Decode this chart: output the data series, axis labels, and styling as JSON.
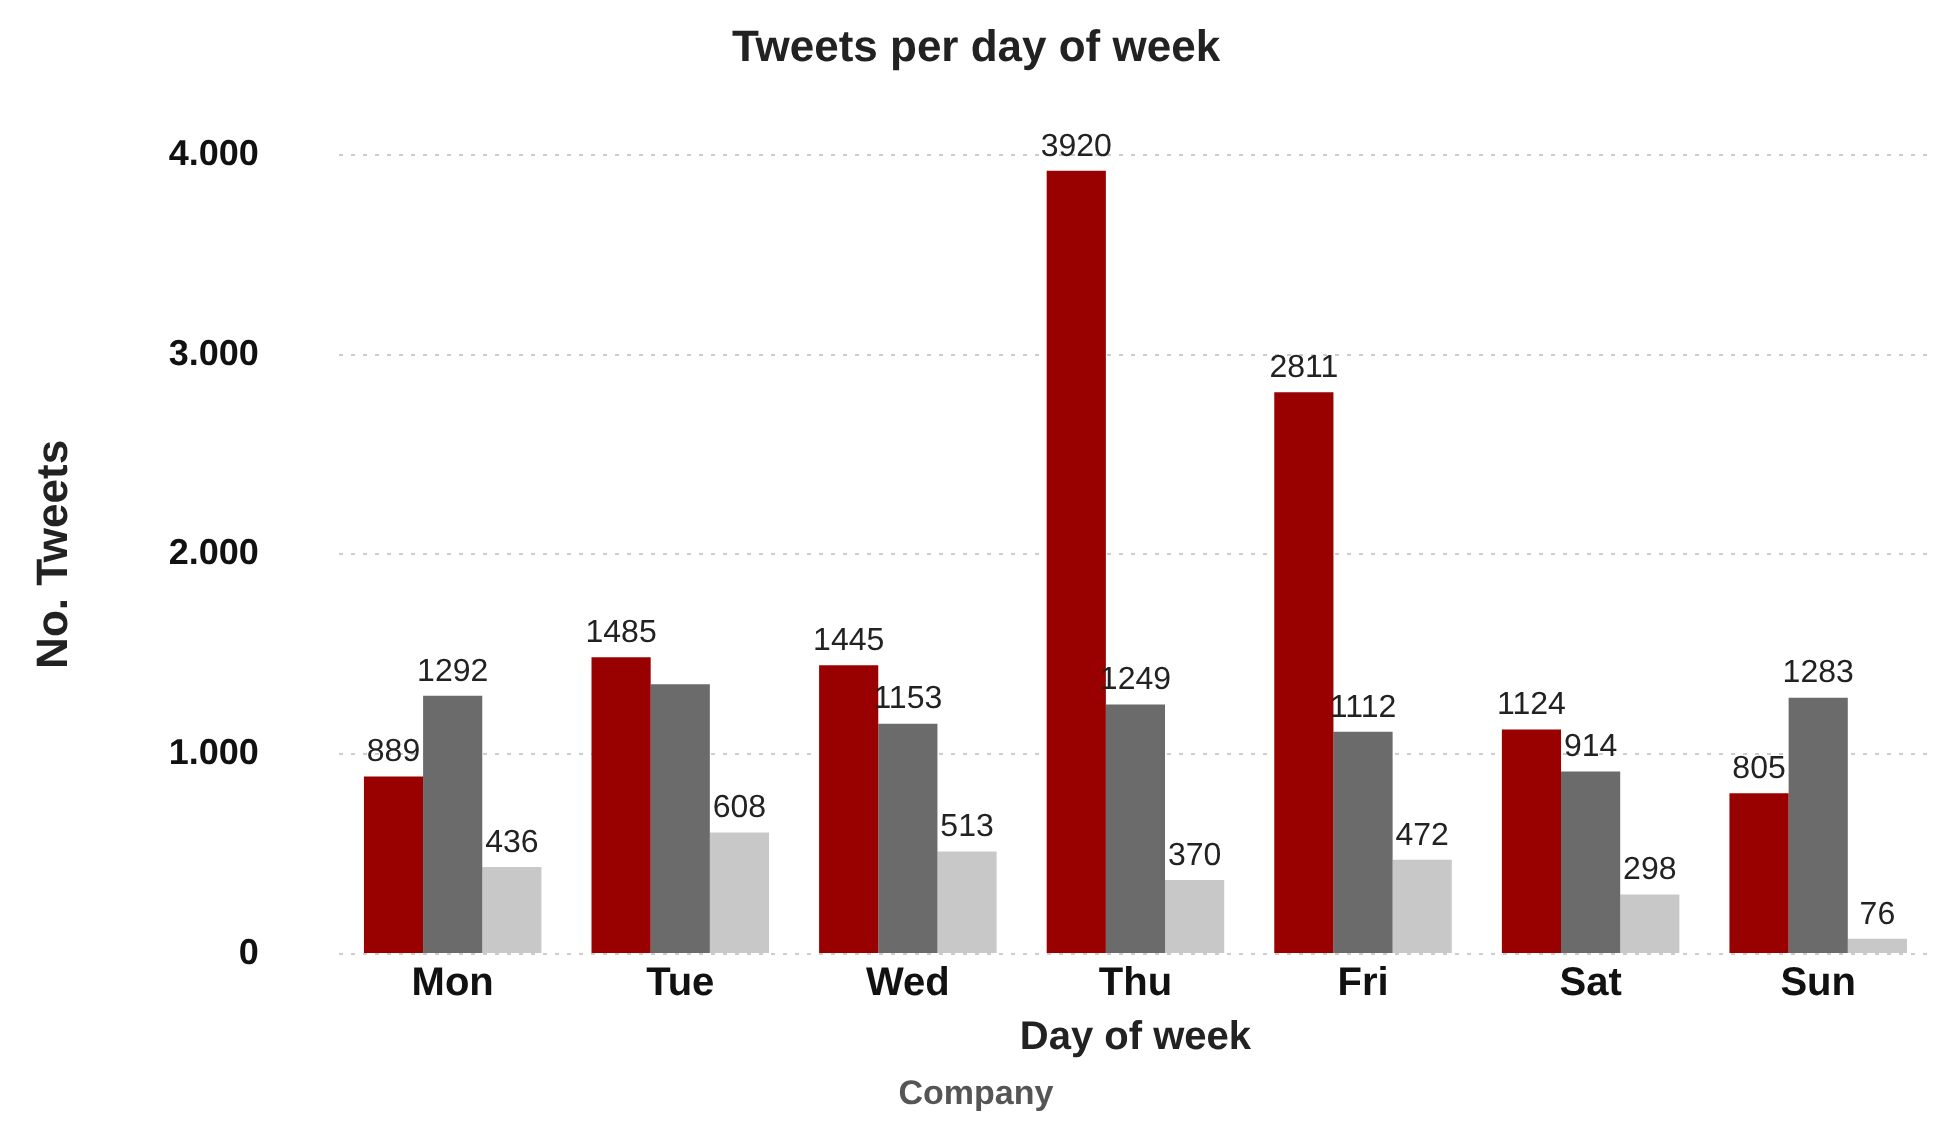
{
  "chart_data": {
    "type": "bar",
    "title": "Tweets per day of week",
    "xlabel": "Day of week",
    "ylabel": "No. Tweets",
    "legend_title": "Company",
    "categories": [
      "Mon",
      "Tue",
      "Wed",
      "Thu",
      "Fri",
      "Sat",
      "Sun"
    ],
    "series": [
      {
        "color": "#990000",
        "values": [
          889,
          1485,
          1445,
          3920,
          2811,
          1124,
          805
        ],
        "value_labels": [
          "889",
          "1485",
          "1445",
          "3920",
          "2811",
          "1124",
          "805"
        ]
      },
      {
        "color": "#6b6b6b",
        "values": [
          1292,
          1350,
          1153,
          1249,
          1112,
          914,
          1283
        ],
        "value_labels": [
          "1292",
          null,
          "1153",
          "1249",
          "1112",
          "914",
          "1283"
        ]
      },
      {
        "color": "#c8c8c8",
        "values": [
          436,
          608,
          513,
          370,
          472,
          298,
          76
        ],
        "value_labels": [
          "436",
          "608",
          "513",
          "370",
          "472",
          "298",
          "76"
        ]
      }
    ],
    "ylim": [
      0,
      4000
    ],
    "yticks": [
      {
        "value": 0,
        "label": "0"
      },
      {
        "value": 1000,
        "label": "1.000"
      },
      {
        "value": 2000,
        "label": "2.000"
      },
      {
        "value": 3000,
        "label": "3.000"
      },
      {
        "value": 4000,
        "label": "4.000"
      }
    ],
    "grid": "y"
  }
}
